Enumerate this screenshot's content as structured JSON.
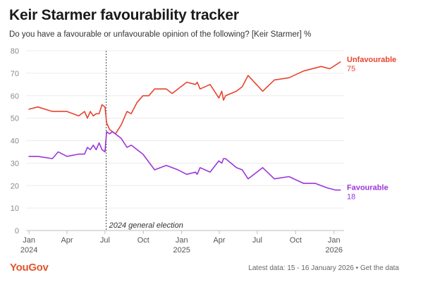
{
  "header": {
    "title": "Keir Starmer favourability tracker",
    "subtitle": "Do you have a favourable or unfavourable opinion of the following? [Keir Starmer] %"
  },
  "footer": {
    "logo": "YouGov",
    "latest_label": "Latest data: 15 - 16 January 2026",
    "separator": "•",
    "link_label": "Get the data"
  },
  "chart_data": {
    "type": "line",
    "title": "Keir Starmer favourability tracker",
    "subtitle": "Do you have a favourable or unfavourable opinion of the following? [Keir Starmer] %",
    "ylim": [
      0,
      80
    ],
    "yticks": [
      0,
      10,
      20,
      30,
      40,
      50,
      60,
      70,
      80
    ],
    "xlim": [
      "2023-12-25",
      "2026-01-25"
    ],
    "grid": true,
    "xticks": [
      {
        "date": "2024-01-01",
        "label": "Jan",
        "sublabel": "2024"
      },
      {
        "date": "2024-04-01",
        "label": "Apr",
        "sublabel": ""
      },
      {
        "date": "2024-07-01",
        "label": "Jul",
        "sublabel": ""
      },
      {
        "date": "2024-10-01",
        "label": "Oct",
        "sublabel": ""
      },
      {
        "date": "2025-01-01",
        "label": "Jan",
        "sublabel": "2025"
      },
      {
        "date": "2025-04-01",
        "label": "Apr",
        "sublabel": ""
      },
      {
        "date": "2025-07-01",
        "label": "Jul",
        "sublabel": ""
      },
      {
        "date": "2025-10-01",
        "label": "Oct",
        "sublabel": ""
      },
      {
        "date": "2026-01-01",
        "label": "Jan",
        "sublabel": "2026"
      }
    ],
    "annotations": [
      {
        "date": "2024-07-04",
        "label": "2024 general election"
      }
    ],
    "series": [
      {
        "name": "Unfavourable",
        "color": "#e8432e",
        "end_label": "75",
        "points": [
          [
            "2024-01-01",
            54
          ],
          [
            "2024-01-22",
            55
          ],
          [
            "2024-02-26",
            53
          ],
          [
            "2024-04-01",
            53
          ],
          [
            "2024-04-29",
            51
          ],
          [
            "2024-05-13",
            53
          ],
          [
            "2024-05-20",
            50
          ],
          [
            "2024-05-27",
            53
          ],
          [
            "2024-06-03",
            51
          ],
          [
            "2024-06-10",
            52
          ],
          [
            "2024-06-17",
            52
          ],
          [
            "2024-06-24",
            56
          ],
          [
            "2024-07-01",
            55
          ],
          [
            "2024-07-05",
            48
          ],
          [
            "2024-07-12",
            45
          ],
          [
            "2024-07-19",
            44
          ],
          [
            "2024-07-26",
            43
          ],
          [
            "2024-08-09",
            47
          ],
          [
            "2024-08-23",
            53
          ],
          [
            "2024-09-02",
            52
          ],
          [
            "2024-09-16",
            57
          ],
          [
            "2024-09-30",
            60
          ],
          [
            "2024-10-14",
            60
          ],
          [
            "2024-10-28",
            63
          ],
          [
            "2024-11-25",
            63
          ],
          [
            "2024-12-09",
            61
          ],
          [
            "2025-01-13",
            66
          ],
          [
            "2025-02-03",
            65
          ],
          [
            "2025-02-07",
            66
          ],
          [
            "2025-02-14",
            63
          ],
          [
            "2025-03-10",
            65
          ],
          [
            "2025-03-31",
            59
          ],
          [
            "2025-04-07",
            62
          ],
          [
            "2025-04-11",
            58
          ],
          [
            "2025-04-16",
            60
          ],
          [
            "2025-05-12",
            62
          ],
          [
            "2025-05-26",
            64
          ],
          [
            "2025-06-09",
            69
          ],
          [
            "2025-07-14",
            62
          ],
          [
            "2025-08-11",
            67
          ],
          [
            "2025-09-15",
            68
          ],
          [
            "2025-10-20",
            71
          ],
          [
            "2025-12-01",
            73
          ],
          [
            "2025-12-22",
            72
          ],
          [
            "2026-01-16",
            75
          ]
        ]
      },
      {
        "name": "Favourable",
        "color": "#9b36d9",
        "end_label": "18",
        "points": [
          [
            "2024-01-01",
            33
          ],
          [
            "2024-01-22",
            33
          ],
          [
            "2024-02-26",
            32
          ],
          [
            "2024-03-11",
            35
          ],
          [
            "2024-04-01",
            33
          ],
          [
            "2024-04-29",
            34
          ],
          [
            "2024-05-13",
            34
          ],
          [
            "2024-05-20",
            37
          ],
          [
            "2024-05-27",
            36
          ],
          [
            "2024-06-03",
            38
          ],
          [
            "2024-06-10",
            36
          ],
          [
            "2024-06-17",
            39
          ],
          [
            "2024-06-24",
            36
          ],
          [
            "2024-07-01",
            35
          ],
          [
            "2024-07-05",
            44
          ],
          [
            "2024-07-12",
            43
          ],
          [
            "2024-07-19",
            44
          ],
          [
            "2024-07-26",
            43
          ],
          [
            "2024-08-09",
            41
          ],
          [
            "2024-08-23",
            37
          ],
          [
            "2024-09-02",
            38
          ],
          [
            "2024-09-30",
            34
          ],
          [
            "2024-10-28",
            27
          ],
          [
            "2024-11-25",
            29
          ],
          [
            "2024-12-23",
            27
          ],
          [
            "2025-01-13",
            25
          ],
          [
            "2025-02-03",
            26
          ],
          [
            "2025-02-07",
            25
          ],
          [
            "2025-02-14",
            28
          ],
          [
            "2025-03-10",
            26
          ],
          [
            "2025-03-31",
            31
          ],
          [
            "2025-04-07",
            30
          ],
          [
            "2025-04-11",
            32
          ],
          [
            "2025-04-16",
            32
          ],
          [
            "2025-05-12",
            28
          ],
          [
            "2025-05-26",
            27
          ],
          [
            "2025-06-09",
            23
          ],
          [
            "2025-07-14",
            28
          ],
          [
            "2025-08-11",
            23
          ],
          [
            "2025-09-15",
            24
          ],
          [
            "2025-10-20",
            21
          ],
          [
            "2025-11-17",
            21
          ],
          [
            "2025-12-15",
            19
          ],
          [
            "2026-01-05",
            18
          ],
          [
            "2026-01-16",
            18
          ]
        ]
      }
    ]
  }
}
